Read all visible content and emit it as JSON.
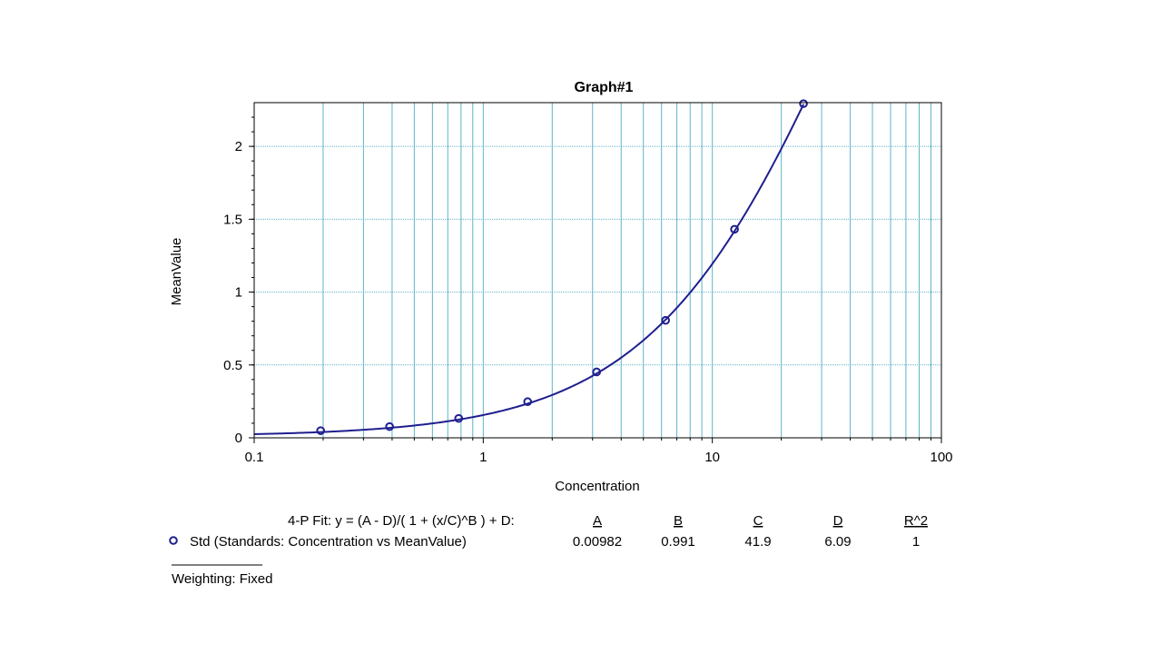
{
  "chart_data": {
    "type": "scatter",
    "title": "Graph#1",
    "xlabel": "Concentration",
    "ylabel": "MeanValue",
    "xscale": "log",
    "xlim": [
      0.1,
      100
    ],
    "ylim": [
      0,
      2.3
    ],
    "xticks": [
      "0.1",
      "1",
      "10",
      "100"
    ],
    "yticks": [
      "0",
      "0.5",
      "1",
      "1.5",
      "2"
    ],
    "grid": true,
    "series": [
      {
        "name": "Std (Standards: Concentration vs MeanValue)",
        "color": "#1f1f8f",
        "x": [
          0.195,
          0.39,
          0.781,
          1.5625,
          3.125,
          6.25,
          12.5,
          25
        ],
        "y": [
          0.049,
          0.077,
          0.133,
          0.248,
          0.452,
          0.806,
          1.431,
          2.293
        ]
      }
    ],
    "fit": {
      "model": "4-P Fit: y = (A - D)/( 1 + (x/C)^B ) + D:",
      "params": {
        "A": 0.00982,
        "B": 0.991,
        "C": 41.9,
        "D": 6.09
      }
    }
  },
  "legend": {
    "formula": "4-P Fit: y = (A - D)/( 1 + (x/C)^B ) + D:",
    "headers": [
      "A",
      "B",
      "C",
      "D",
      "R^2"
    ],
    "series_label": "Std (Standards: Concentration vs MeanValue)",
    "values": [
      "0.00982",
      "0.991",
      "41.9",
      "6.09",
      "1"
    ],
    "weighting": "Weighting: Fixed"
  },
  "colors": {
    "grid": "#5fb3c9",
    "series": "#1f1f8f",
    "axis": "#000000"
  }
}
